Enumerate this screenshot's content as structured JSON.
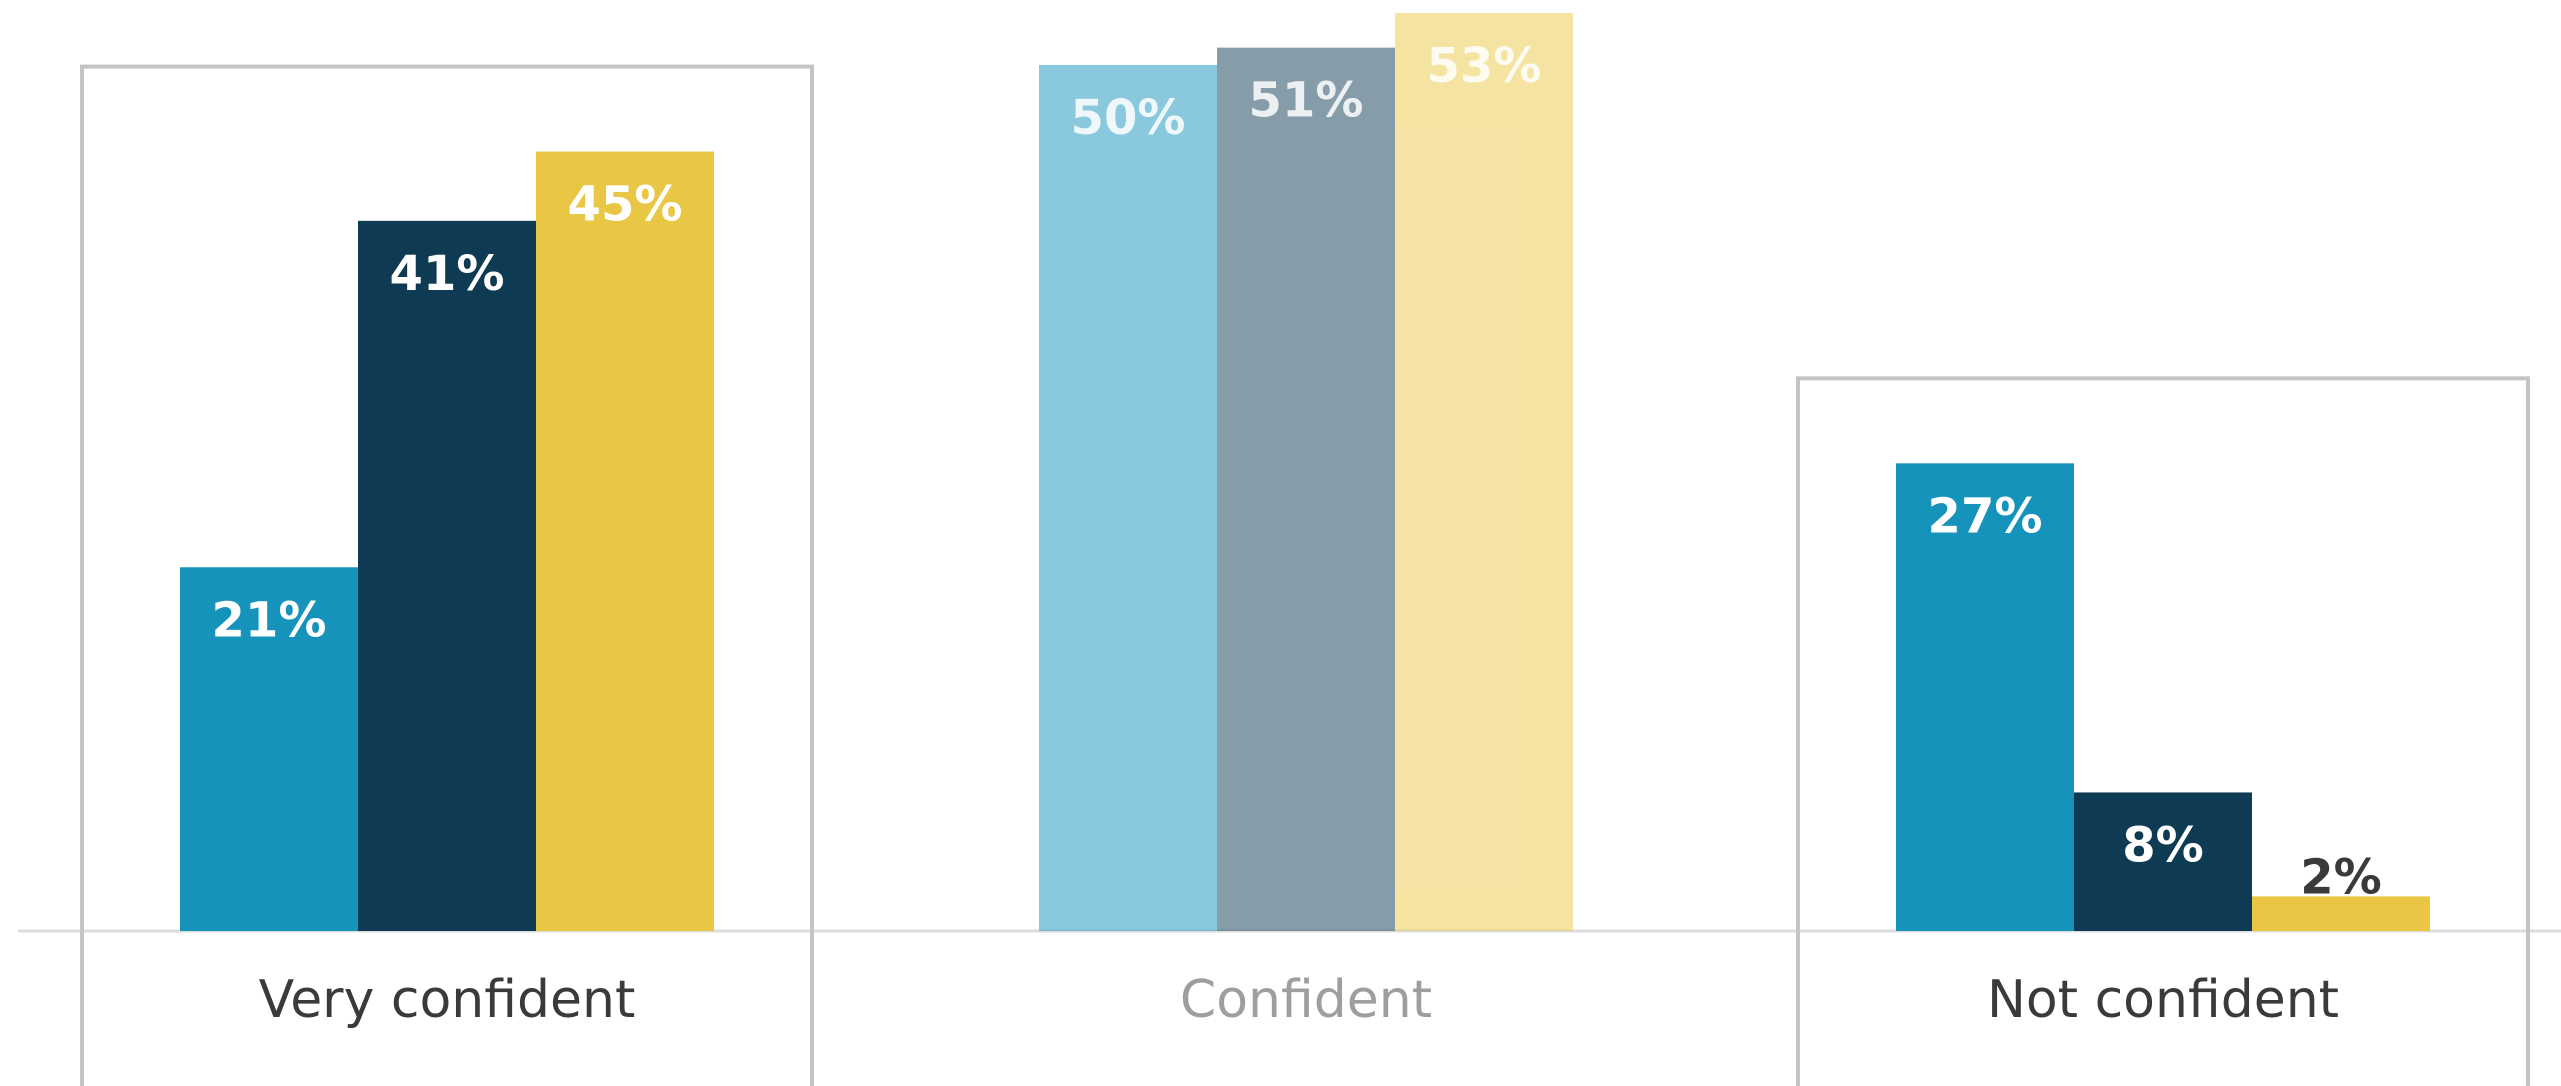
{
  "chart_data": {
    "type": "bar",
    "categories": [
      "Very confident",
      "Confident",
      "Not confident"
    ],
    "series": [
      {
        "color": "#1593bb",
        "values": [
          21,
          50,
          27
        ],
        "value_labels": [
          "21%",
          "50%",
          "27%"
        ]
      },
      {
        "color": "#0e3b53",
        "values": [
          41,
          51,
          8
        ],
        "value_labels": [
          "41%",
          "51%",
          "8%"
        ]
      },
      {
        "color": "#e9c744",
        "values": [
          45,
          53,
          2
        ],
        "value_labels": [
          "45%",
          "53%",
          "2%"
        ]
      }
    ],
    "ylim": [
      0,
      53
    ],
    "highlighted_categories": [
      0,
      2
    ]
  }
}
